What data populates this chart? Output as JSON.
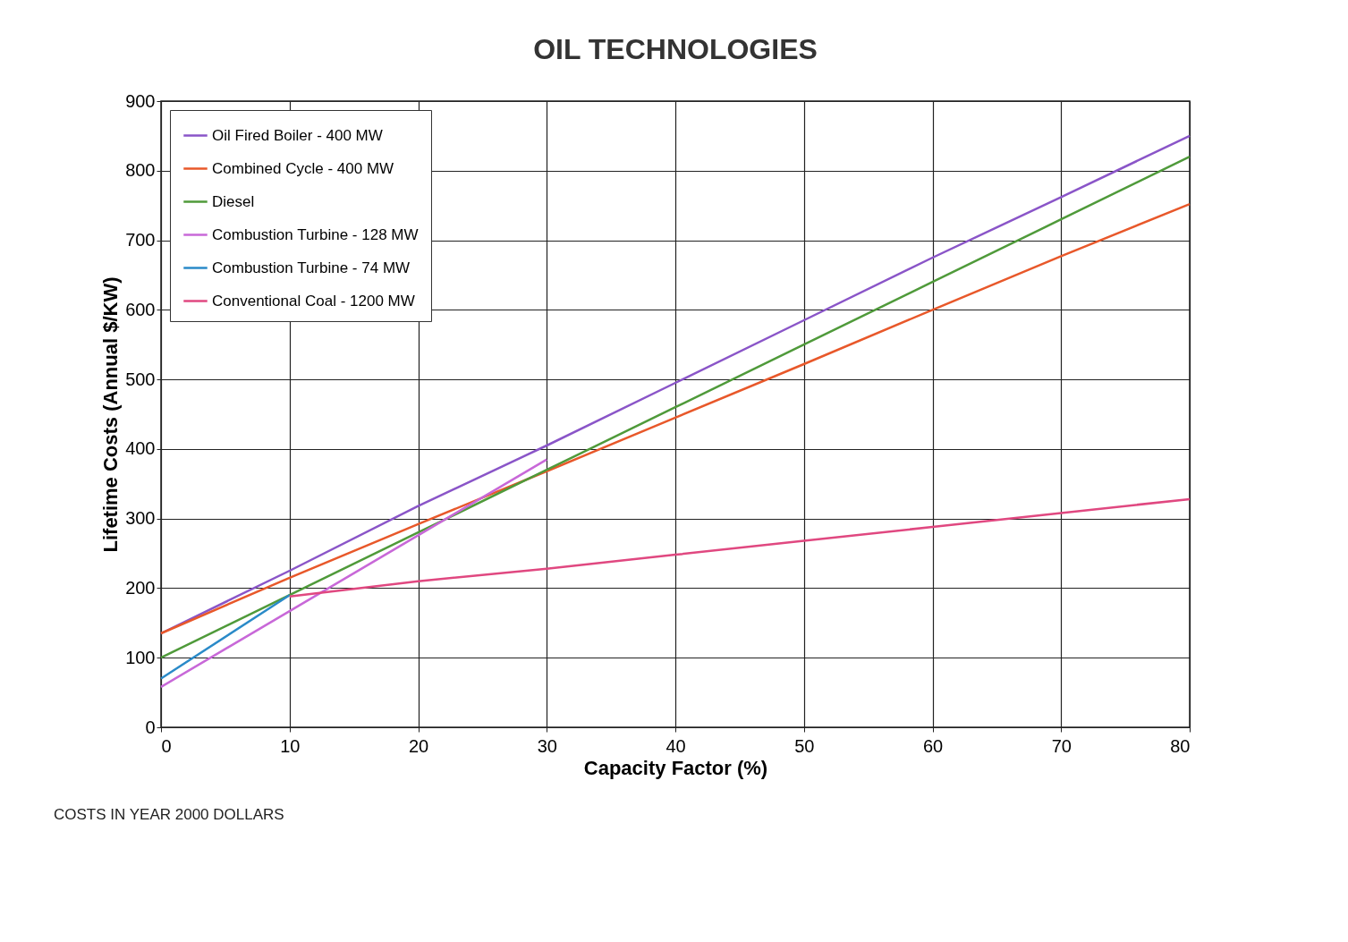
{
  "chart_data": {
    "type": "line",
    "title": "OIL  TECHNOLOGIES",
    "xlabel": "Capacity Factor (%)",
    "ylabel": "Lifetime Costs (Annual $/KW)",
    "annotations": [
      "COSTS IN YEAR 2000 DOLLARS"
    ],
    "xlim": [
      0,
      80
    ],
    "xticks": [
      0,
      10,
      20,
      30,
      40,
      50,
      60,
      70,
      80
    ],
    "ylim": [
      0,
      900
    ],
    "yticks": [
      0,
      100,
      200,
      300,
      400,
      500,
      600,
      700,
      800,
      900
    ],
    "grid": true,
    "legend": "top left",
    "marker": "none",
    "line_style": "solid",
    "series": [
      {
        "name": "Oil Fired Boiler - 400 MW",
        "color": "#8a55c8",
        "x": [
          0,
          10,
          20,
          30,
          40,
          50,
          60,
          70,
          80
        ],
        "values": [
          135,
          225,
          318,
          405,
          495,
          585,
          675,
          762,
          850
        ]
      },
      {
        "name": "Combined Cycle - 400 MW",
        "color": "#e8582a",
        "x": [
          0,
          10,
          20,
          30,
          40,
          50,
          60,
          70,
          80
        ],
        "values": [
          135,
          215,
          292,
          368,
          445,
          522,
          600,
          677,
          752
        ]
      },
      {
        "name": "Diesel",
        "color": "#4f9a3a",
        "x": [
          0,
          10,
          20,
          30,
          40,
          50,
          60,
          70,
          80
        ],
        "values": [
          100,
          190,
          280,
          370,
          460,
          550,
          640,
          730,
          820
        ]
      },
      {
        "name": "Combustion Turbine - 128 MW",
        "color": "#c868d8",
        "x": [
          0,
          10,
          20,
          30
        ],
        "values": [
          58,
          167,
          276,
          385
        ]
      },
      {
        "name": "Combustion Turbine - 74 MW",
        "color": "#2a8ac8",
        "x": [
          0,
          10
        ],
        "values": [
          70,
          190
        ]
      },
      {
        "name": "Conventional Coal - 1200 MW",
        "color": "#e04880",
        "x": [
          10,
          20,
          30,
          40,
          50,
          60,
          70,
          80
        ],
        "values": [
          188,
          210,
          228,
          248,
          268,
          288,
          308,
          328
        ]
      }
    ]
  }
}
